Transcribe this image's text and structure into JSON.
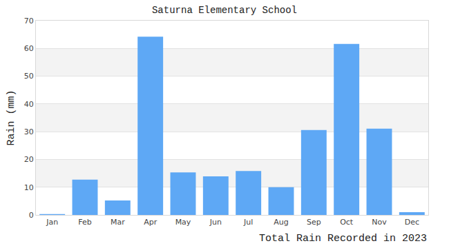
{
  "chart_data": {
    "type": "bar",
    "title": "Saturna Elementary School",
    "y_label": "Rain (mm)",
    "x_label": "Total Rain Recorded in 2023",
    "categories": [
      "Jan",
      "Feb",
      "Mar",
      "Apr",
      "May",
      "Jun",
      "Jul",
      "Aug",
      "Sep",
      "Oct",
      "Nov",
      "Dec"
    ],
    "values": [
      0.3,
      12.7,
      5.2,
      64.2,
      15.3,
      13.9,
      15.8,
      10.0,
      30.6,
      61.6,
      31.1,
      1.0
    ],
    "color": "#5ea8f5",
    "ylim": [
      0,
      70
    ],
    "yticks": [
      0,
      10,
      20,
      30,
      40,
      50,
      60,
      70
    ],
    "grid": true
  }
}
